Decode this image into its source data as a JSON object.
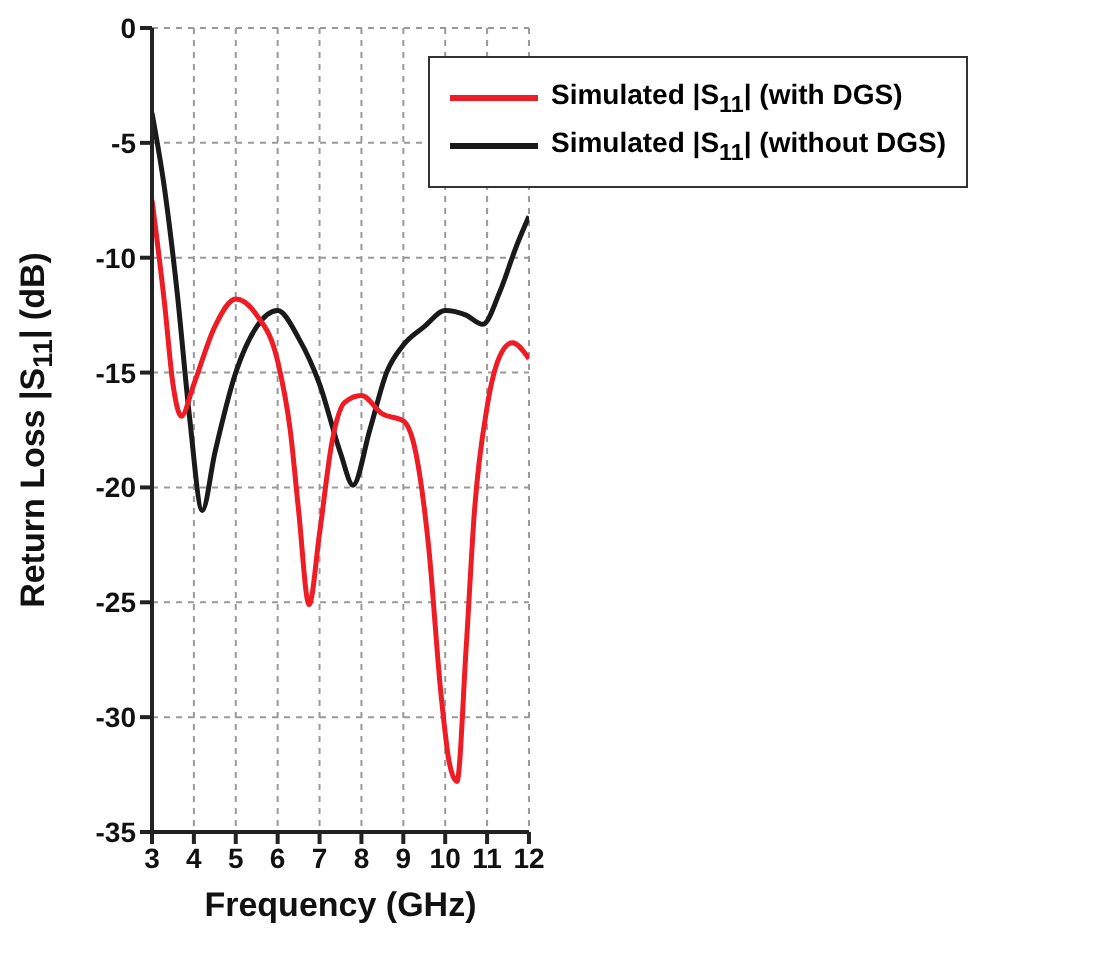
{
  "chart_data": {
    "type": "line",
    "xlabel": "Frequency (GHz)",
    "ylabel": "Return Loss |S$_{11}$| (dB)",
    "xlim": [
      3,
      12
    ],
    "xticks": [
      3,
      4,
      5,
      6,
      7,
      8,
      9,
      10,
      11,
      12
    ],
    "ylim": [
      -35,
      0
    ],
    "yticks": [
      -35,
      -30,
      -25,
      -20,
      -15,
      -10,
      -5,
      0
    ],
    "grid": true,
    "legend": "top right",
    "line_style": "solid",
    "marker": "none",
    "series": [
      {
        "name": "Simulated |S$_{11}$| (without DGS)",
        "color": "#1a1a1a",
        "x": [
          3,
          3.3,
          3.6,
          3.9,
          4.2,
          4.5,
          5,
          5.5,
          6,
          6.5,
          7,
          7.5,
          7.8,
          8.2,
          8.6,
          9,
          9.5,
          10,
          10.5,
          10.9,
          11.3,
          11.7,
          12
        ],
        "values": [
          -3.7,
          -7,
          -11.5,
          -17,
          -21,
          -18.5,
          -15,
          -13,
          -12.3,
          -13.5,
          -15.5,
          -18.5,
          -19.9,
          -17.5,
          -15,
          -13.8,
          -13,
          -12.3,
          -12.5,
          -12.9,
          -11.5,
          -9.5,
          -8.2
        ]
      },
      {
        "name": "Simulated |S$_{11}$| (with DGS)",
        "color": "#ee1c25",
        "x": [
          3,
          3.3,
          3.5,
          3.7,
          4,
          4.5,
          5,
          5.5,
          6,
          6.3,
          6.5,
          6.75,
          7,
          7.3,
          7.6,
          8,
          8.5,
          9,
          9.3,
          9.6,
          9.9,
          10.1,
          10.28,
          10.5,
          10.7,
          11,
          11.3,
          11.6,
          12
        ],
        "values": [
          -7.5,
          -12,
          -15.5,
          -16.9,
          -15.5,
          -13,
          -11.8,
          -12.5,
          -14.5,
          -17.5,
          -21,
          -25.1,
          -22,
          -18,
          -16.3,
          -16,
          -16.8,
          -17.1,
          -18.5,
          -22.5,
          -29,
          -32,
          -32.8,
          -27,
          -21,
          -16.5,
          -14.3,
          -13.7,
          -14.4
        ]
      }
    ]
  }
}
